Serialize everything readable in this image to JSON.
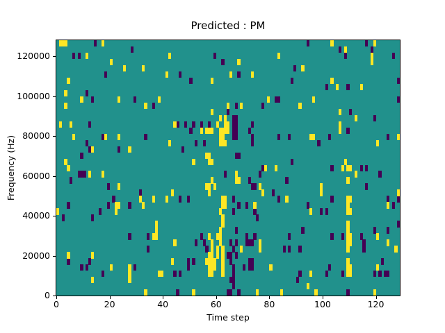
{
  "title": "Predicted : PM",
  "xlabel": "Time step",
  "ylabel": "Frequency (Hz)",
  "chart_data": {
    "type": "heatmap",
    "title": "Predicted : PM",
    "xlabel": "Time step",
    "ylabel": "Frequency (Hz)",
    "x_range": [
      0,
      129
    ],
    "y_range": [
      0,
      128000
    ],
    "grid_cols": 129,
    "grid_rows": 41,
    "x_ticks": [
      0,
      20,
      40,
      60,
      80,
      100,
      120
    ],
    "y_ticks": [
      0,
      20000,
      40000,
      60000,
      80000,
      100000,
      120000
    ],
    "grid": false,
    "legend": "none",
    "colors": {
      "background": "#21918c",
      "low": "#440154",
      "high": "#fde725"
    },
    "note": "rows indexed from top of plot (row 0 = highest frequency band); values: low=dark purple, high=yellow, all other cells = background teal",
    "cells": {
      "low": [
        [
          14,
          0
        ],
        [
          28,
          1
        ],
        [
          6,
          2
        ],
        [
          8,
          2
        ],
        [
          18,
          5
        ],
        [
          11,
          8
        ],
        [
          13,
          9
        ],
        [
          29,
          9
        ],
        [
          36,
          10
        ],
        [
          12,
          13
        ],
        [
          59,
          2
        ],
        [
          62,
          3
        ],
        [
          46,
          5
        ],
        [
          68,
          5
        ],
        [
          50,
          6
        ],
        [
          82,
          9
        ],
        [
          83,
          9
        ],
        [
          67,
          10
        ],
        [
          77,
          10
        ],
        [
          64,
          11
        ],
        [
          66,
          12
        ],
        [
          67,
          12
        ],
        [
          45,
          13
        ],
        [
          48,
          13
        ],
        [
          51,
          13
        ],
        [
          54,
          13
        ],
        [
          57,
          13
        ],
        [
          66,
          13
        ],
        [
          67,
          13
        ],
        [
          73,
          13
        ],
        [
          94,
          0
        ],
        [
          116,
          0
        ],
        [
          106,
          1
        ],
        [
          118,
          1
        ],
        [
          108,
          2
        ],
        [
          126,
          2
        ],
        [
          89,
          4
        ],
        [
          88,
          6
        ],
        [
          128,
          6
        ],
        [
          101,
          7
        ],
        [
          109,
          7
        ],
        [
          128,
          9
        ],
        [
          110,
          11
        ],
        [
          119,
          12
        ],
        [
          17,
          15
        ],
        [
          33,
          15
        ],
        [
          11,
          16
        ],
        [
          12,
          17
        ],
        [
          23,
          17
        ],
        [
          9,
          18
        ],
        [
          8,
          21
        ],
        [
          9,
          21
        ],
        [
          10,
          21
        ],
        [
          5,
          22
        ],
        [
          19,
          23
        ],
        [
          21,
          25
        ],
        [
          31,
          24
        ],
        [
          27,
          26
        ],
        [
          4,
          26
        ],
        [
          19,
          26
        ],
        [
          50,
          14
        ],
        [
          66,
          14
        ],
        [
          67,
          14
        ],
        [
          72,
          14
        ],
        [
          66,
          15
        ],
        [
          67,
          15
        ],
        [
          73,
          15
        ],
        [
          83,
          15
        ],
        [
          52,
          16
        ],
        [
          55,
          16
        ],
        [
          73,
          16
        ],
        [
          47,
          17
        ],
        [
          67,
          18
        ],
        [
          68,
          18
        ],
        [
          77,
          20
        ],
        [
          63,
          21
        ],
        [
          76,
          21
        ],
        [
          72,
          22
        ],
        [
          73,
          23
        ],
        [
          74,
          23
        ],
        [
          81,
          24
        ],
        [
          46,
          25
        ],
        [
          49,
          25
        ],
        [
          66,
          25
        ],
        [
          83,
          25
        ],
        [
          68,
          26
        ],
        [
          71,
          26
        ],
        [
          109,
          14
        ],
        [
          87,
          15
        ],
        [
          102,
          15
        ],
        [
          124,
          15
        ],
        [
          98,
          16
        ],
        [
          88,
          19
        ],
        [
          103,
          20
        ],
        [
          114,
          20
        ],
        [
          116,
          20
        ],
        [
          121,
          21
        ],
        [
          86,
          22
        ],
        [
          116,
          23
        ],
        [
          103,
          25
        ],
        [
          124,
          25
        ],
        [
          128,
          25
        ],
        [
          126,
          26
        ],
        [
          94,
          26
        ],
        [
          2,
          28
        ],
        [
          16,
          27
        ],
        [
          13,
          28
        ],
        [
          27,
          31
        ],
        [
          34,
          31
        ],
        [
          34,
          33
        ],
        [
          12,
          35
        ],
        [
          4,
          35
        ],
        [
          9,
          36
        ],
        [
          11,
          36
        ],
        [
          29,
          36
        ],
        [
          17,
          37
        ],
        [
          66,
          27
        ],
        [
          74,
          27
        ],
        [
          75,
          28
        ],
        [
          67,
          30
        ],
        [
          54,
          31
        ],
        [
          71,
          31
        ],
        [
          74,
          31
        ],
        [
          52,
          32
        ],
        [
          55,
          32
        ],
        [
          56,
          33
        ],
        [
          64,
          34
        ],
        [
          65,
          34
        ],
        [
          65,
          35
        ],
        [
          72,
          35
        ],
        [
          73,
          35
        ],
        [
          66,
          36
        ],
        [
          70,
          36
        ],
        [
          72,
          36
        ],
        [
          73,
          36
        ],
        [
          66,
          37
        ],
        [
          65,
          38
        ],
        [
          66,
          38
        ],
        [
          66,
          39
        ],
        [
          65,
          40
        ],
        [
          49,
          35
        ],
        [
          51,
          35
        ],
        [
          49,
          36
        ],
        [
          44,
          37
        ],
        [
          46,
          37
        ],
        [
          45,
          40
        ],
        [
          64,
          40
        ],
        [
          68,
          40
        ],
        [
          65,
          32
        ],
        [
          66,
          33
        ],
        [
          67,
          32
        ],
        [
          67,
          34
        ],
        [
          71,
          32
        ],
        [
          72,
          32
        ],
        [
          73,
          32
        ],
        [
          85,
          33
        ],
        [
          87,
          33
        ],
        [
          91,
          33
        ],
        [
          99,
          27
        ],
        [
          101,
          27
        ],
        [
          92,
          30
        ],
        [
          119,
          30
        ],
        [
          124,
          30
        ],
        [
          87,
          31
        ],
        [
          103,
          31
        ],
        [
          107,
          31
        ],
        [
          114,
          31
        ],
        [
          115,
          32
        ],
        [
          115,
          33
        ],
        [
          128,
          29
        ],
        [
          122,
          35
        ],
        [
          102,
          36
        ],
        [
          107,
          37
        ],
        [
          91,
          37
        ],
        [
          101,
          37
        ],
        [
          119,
          37
        ],
        [
          121,
          37
        ],
        [
          123,
          37
        ],
        [
          124,
          37
        ],
        [
          90,
          38
        ],
        [
          109,
          40
        ]
      ],
      "high": [
        [
          1,
          0
        ],
        [
          2,
          0
        ],
        [
          3,
          0
        ],
        [
          17,
          0
        ],
        [
          11,
          2
        ],
        [
          42,
          2
        ],
        [
          20,
          3
        ],
        [
          25,
          4
        ],
        [
          32,
          4
        ],
        [
          41,
          5
        ],
        [
          4,
          6
        ],
        [
          3,
          8
        ],
        [
          9,
          9
        ],
        [
          23,
          9
        ],
        [
          38,
          9
        ],
        [
          3,
          10
        ],
        [
          33,
          10
        ],
        [
          1,
          13
        ],
        [
          5,
          13
        ],
        [
          83,
          2
        ],
        [
          68,
          3
        ],
        [
          65,
          5
        ],
        [
          73,
          5
        ],
        [
          58,
          6
        ],
        [
          79,
          9
        ],
        [
          64,
          10
        ],
        [
          69,
          10
        ],
        [
          58,
          11
        ],
        [
          61,
          12
        ],
        [
          63,
          12
        ],
        [
          60,
          13
        ],
        [
          63,
          13
        ],
        [
          64,
          13
        ],
        [
          103,
          0
        ],
        [
          119,
          0
        ],
        [
          108,
          1
        ],
        [
          118,
          2
        ],
        [
          118,
          3
        ],
        [
          92,
          4
        ],
        [
          103,
          6
        ],
        [
          105,
          7
        ],
        [
          114,
          7
        ],
        [
          96,
          9
        ],
        [
          91,
          10
        ],
        [
          106,
          11
        ],
        [
          112,
          12
        ],
        [
          6,
          15
        ],
        [
          18,
          15
        ],
        [
          23,
          15
        ],
        [
          42,
          16
        ],
        [
          13,
          17
        ],
        [
          27,
          17
        ],
        [
          3,
          19
        ],
        [
          4,
          20
        ],
        [
          12,
          21
        ],
        [
          17,
          21
        ],
        [
          23,
          23
        ],
        [
          22,
          26
        ],
        [
          31,
          25
        ],
        [
          36,
          25
        ],
        [
          41,
          25
        ],
        [
          23,
          26
        ],
        [
          32,
          26
        ],
        [
          44,
          13
        ],
        [
          54,
          14
        ],
        [
          56,
          14
        ],
        [
          57,
          14
        ],
        [
          58,
          14
        ],
        [
          61,
          14
        ],
        [
          62,
          14
        ],
        [
          63,
          14
        ],
        [
          64,
          14
        ],
        [
          61,
          15
        ],
        [
          62,
          15
        ],
        [
          61,
          16
        ],
        [
          62,
          16
        ],
        [
          63,
          16
        ],
        [
          51,
          19
        ],
        [
          56,
          18
        ],
        [
          57,
          18
        ],
        [
          57,
          19
        ],
        [
          58,
          19
        ],
        [
          78,
          20
        ],
        [
          82,
          20
        ],
        [
          67,
          21
        ],
        [
          58,
          22
        ],
        [
          67,
          22
        ],
        [
          68,
          22
        ],
        [
          56,
          23
        ],
        [
          57,
          23
        ],
        [
          59,
          23
        ],
        [
          76,
          23
        ],
        [
          77,
          24
        ],
        [
          43,
          24
        ],
        [
          57,
          24
        ],
        [
          62,
          25
        ],
        [
          63,
          25
        ],
        [
          62,
          26
        ],
        [
          63,
          26
        ],
        [
          74,
          26
        ],
        [
          86,
          25
        ],
        [
          106,
          13
        ],
        [
          106,
          14
        ],
        [
          95,
          15
        ],
        [
          96,
          15
        ],
        [
          128,
          15
        ],
        [
          120,
          16
        ],
        [
          108,
          19
        ],
        [
          107,
          20
        ],
        [
          109,
          20
        ],
        [
          110,
          20
        ],
        [
          112,
          21
        ],
        [
          109,
          22
        ],
        [
          99,
          23
        ],
        [
          99,
          24
        ],
        [
          109,
          25
        ],
        [
          110,
          25
        ],
        [
          128,
          24
        ],
        [
          109,
          26
        ],
        [
          124,
          26
        ],
        [
          0,
          27
        ],
        [
          22,
          27
        ],
        [
          37,
          29
        ],
        [
          37,
          30
        ],
        [
          37,
          31
        ],
        [
          36,
          31
        ],
        [
          13,
          34
        ],
        [
          4,
          34
        ],
        [
          20,
          36
        ],
        [
          27,
          36
        ],
        [
          27,
          37
        ],
        [
          27,
          38
        ],
        [
          13,
          38
        ],
        [
          33,
          40
        ],
        [
          38,
          37
        ],
        [
          39,
          37
        ],
        [
          43,
          35
        ],
        [
          61,
          27
        ],
        [
          62,
          28
        ],
        [
          62,
          29
        ],
        [
          61,
          30
        ],
        [
          61,
          31
        ],
        [
          57,
          31
        ],
        [
          60,
          31
        ],
        [
          58,
          32
        ],
        [
          61,
          32
        ],
        [
          44,
          32
        ],
        [
          76,
          32
        ],
        [
          58,
          33
        ],
        [
          60,
          33
        ],
        [
          62,
          33
        ],
        [
          69,
          33
        ],
        [
          76,
          33
        ],
        [
          57,
          34
        ],
        [
          58,
          34
        ],
        [
          60,
          34
        ],
        [
          62,
          34
        ],
        [
          56,
          35
        ],
        [
          57,
          35
        ],
        [
          58,
          35
        ],
        [
          59,
          35
        ],
        [
          62,
          35
        ],
        [
          57,
          36
        ],
        [
          58,
          36
        ],
        [
          59,
          36
        ],
        [
          62,
          36
        ],
        [
          57,
          37
        ],
        [
          58,
          37
        ],
        [
          62,
          37
        ],
        [
          51,
          40
        ],
        [
          75,
          40
        ],
        [
          80,
          36
        ],
        [
          84,
          40
        ],
        [
          95,
          27
        ],
        [
          110,
          27
        ],
        [
          109,
          27
        ],
        [
          109,
          29
        ],
        [
          109,
          30
        ],
        [
          109,
          31
        ],
        [
          109,
          32
        ],
        [
          109,
          33
        ],
        [
          110,
          31
        ],
        [
          110,
          32
        ],
        [
          124,
          32
        ],
        [
          127,
          33
        ],
        [
          109,
          35
        ],
        [
          109,
          36
        ],
        [
          110,
          36
        ],
        [
          109,
          37
        ],
        [
          110,
          37
        ],
        [
          120,
          36
        ],
        [
          120,
          31
        ],
        [
          95,
          37
        ],
        [
          94,
          39
        ],
        [
          97,
          40
        ],
        [
          119,
          40
        ]
      ]
    }
  }
}
